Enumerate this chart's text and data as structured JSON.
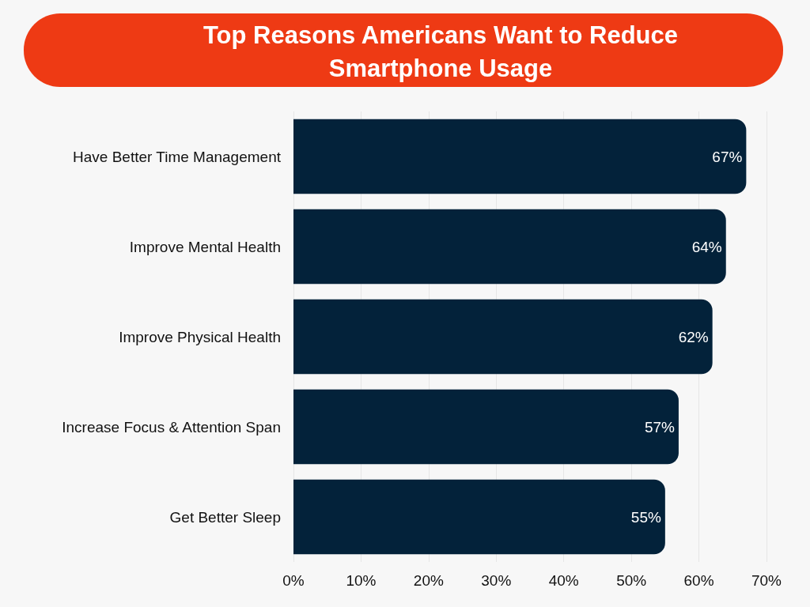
{
  "chart_data": {
    "type": "bar",
    "orientation": "horizontal",
    "title": "Top Reasons Americans Want to Reduce\nSmartphone Usage",
    "categories": [
      "Have Better Time Management",
      "Improve Mental Health",
      "Improve Physical Health",
      "Increase Focus & Attention Span",
      "Get Better Sleep"
    ],
    "values": [
      67,
      64,
      62,
      57,
      55
    ],
    "value_labels": [
      "67%",
      "64%",
      "62%",
      "57%",
      "55%"
    ],
    "color": "#03223a",
    "xlim": [
      0,
      70
    ],
    "xticks": [
      {
        "value": 0,
        "label": "0%"
      },
      {
        "value": 10,
        "label": "10%"
      },
      {
        "value": 20,
        "label": "20%"
      },
      {
        "value": 30,
        "label": "30%"
      },
      {
        "value": 40,
        "label": "40%"
      },
      {
        "value": 50,
        "label": "50%"
      },
      {
        "value": 60,
        "label": "60%"
      },
      {
        "value": 70,
        "label": "70%"
      }
    ],
    "grid": "x"
  }
}
